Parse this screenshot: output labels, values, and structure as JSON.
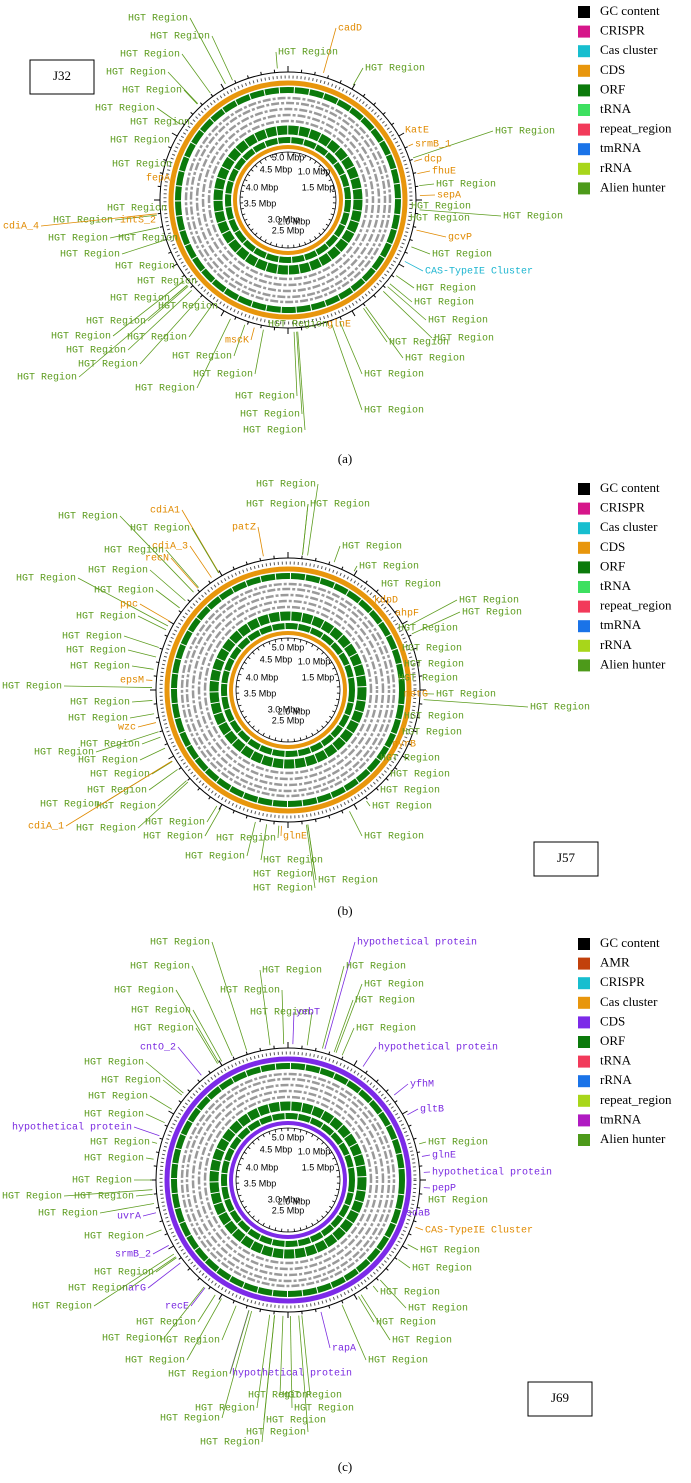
{
  "panels": [
    {
      "caption": "(a)",
      "sample": "J32",
      "legend": [
        {
          "label": "GC content",
          "color": "#000000"
        },
        {
          "label": "CRISPR",
          "color": "#d6168a"
        },
        {
          "label": "Cas cluster",
          "color": "#17becf"
        },
        {
          "label": "CDS",
          "color": "#e8960c"
        },
        {
          "label": "ORF",
          "color": "#0b7a0b"
        },
        {
          "label": "tRNA",
          "color": "#3de060"
        },
        {
          "label": "repeat_region",
          "color": "#f23a5a"
        },
        {
          "label": "tmRNA",
          "color": "#1a73e8"
        },
        {
          "label": "rRNA",
          "color": "#a8d61a"
        },
        {
          "label": "Alien hunter",
          "color": "#4d9a1a"
        }
      ],
      "scale_labels": [
        "5.0 Mbp",
        "4.5 Mbp",
        "1.0 Mbp",
        "4.0 Mbp",
        "1.5 Mbp",
        "3.5 Mbp",
        "3.0 Mbp",
        "2.0 Mbp",
        "2.5 Mbp"
      ],
      "annotations": [
        "HGT Region",
        "HGT Region",
        "HGT Region",
        "HGT Region",
        "HGT Region",
        "HGT Region",
        "HGT Region",
        "HGT Region",
        "HGT Region",
        "fepA",
        "HGT Region",
        "HGT Region",
        "intS_2",
        "cdiA_4",
        "HGT Region",
        "HGT Region",
        "HGT Region",
        "HGT Region",
        "HGT Region",
        "HGT Region",
        "HGT Region",
        "HGT Region",
        "HGT Region",
        "HGT Region",
        "HGT Region",
        "HGT Region",
        "HGT Region",
        "HGT Region",
        "HGT Region",
        "mscK",
        "HGT Region",
        "HGT Region",
        "HGT Region",
        "HGT Region",
        "HGT Region",
        "glnE",
        "HGT Region",
        "HGT Region",
        "HGT Region",
        "HGT Region",
        "HGT Region",
        "HGT Region",
        "HGT Region",
        "HGT Region",
        "CAS-TypeIE Cluster",
        "HGT Region",
        "gcvP",
        "HGT Region",
        "HGT Region",
        "HGT Region",
        "sepA",
        "HGT Region",
        "fhuE",
        "dcp",
        "HGT Region",
        "srmB_1",
        "KatE",
        "HGT Region",
        "cadD",
        "HGT Region"
      ]
    },
    {
      "caption": "(b)",
      "sample": "J57",
      "legend": [
        {
          "label": "GC content",
          "color": "#000000"
        },
        {
          "label": "CRISPR",
          "color": "#d6168a"
        },
        {
          "label": "Cas cluster",
          "color": "#17becf"
        },
        {
          "label": "CDS",
          "color": "#e8960c"
        },
        {
          "label": "ORF",
          "color": "#0b7a0b"
        },
        {
          "label": "tRNA",
          "color": "#3de060"
        },
        {
          "label": "repeat_region",
          "color": "#f23a5a"
        },
        {
          "label": "tmRNA",
          "color": "#1a73e8"
        },
        {
          "label": "rRNA",
          "color": "#a8d61a"
        },
        {
          "label": "Alien hunter",
          "color": "#4d9a1a"
        }
      ],
      "scale_labels": [
        "5.0 Mbp",
        "4.5 Mbp",
        "1.0 Mbp",
        "4.0 Mbp",
        "1.5 Mbp",
        "3.5 Mbp",
        "3.0 Mbp",
        "2.0 Mbp",
        "2.5 Mbp"
      ],
      "annotations": [
        "HGT Region",
        "cdiA1",
        "HGT Region",
        "HGT Region",
        "HGT Region",
        "patZ",
        "HGT Region",
        "cdiA_3",
        "HGT Region",
        "HGT Region",
        "recN",
        "HGT Region",
        "HGT Region",
        "HGT Region",
        "ppc",
        "HGT Region",
        "HGT Region",
        "HGT Region",
        "kdpD",
        "HGT Region",
        "HGT Region",
        "ahpF",
        "HGT Region",
        "HGT Region",
        "HGT Region",
        "HGT Region",
        "HGT Region",
        "HGT Region",
        "epsM",
        "HGT Region",
        "HGT Region",
        "wzc",
        "HGT Region",
        "HGT Region",
        "HGT Region",
        "HGT Region",
        "HGT Region",
        "HGT Region",
        "HGT Region",
        "cdiA_1",
        "HGT Region",
        "HGT Region",
        "HGT Region",
        "HGT Region",
        "HGT Region",
        "glnE",
        "HGT Region",
        "HGT Region",
        "HGT Region",
        "HGT Region",
        "HGT Region",
        "HGT Region",
        "HGT Region",
        "HGT Region",
        "HGT Region",
        "gyrB",
        "HGT Region",
        "HGT Region",
        "HGT Region",
        "metG",
        "HGT Region",
        "HGT Region",
        "HGT Region"
      ]
    },
    {
      "caption": "(c)",
      "sample": "J69",
      "legend": [
        {
          "label": "GC content",
          "color": "#000000"
        },
        {
          "label": "AMR",
          "color": "#c2410c"
        },
        {
          "label": "CRISPR",
          "color": "#17becf"
        },
        {
          "label": "Cas cluster",
          "color": "#e8960c"
        },
        {
          "label": "CDS",
          "color": "#7c2ae8"
        },
        {
          "label": "ORF",
          "color": "#0b7a0b"
        },
        {
          "label": "tRNA",
          "color": "#f23a5a"
        },
        {
          "label": "rRNA",
          "color": "#1a73e8"
        },
        {
          "label": "repeat_region",
          "color": "#a8d61a"
        },
        {
          "label": "tmRNA",
          "color": "#b01ac2"
        },
        {
          "label": "Alien hunter",
          "color": "#4d9a1a"
        }
      ],
      "scale_labels": [
        "5.0 Mbp",
        "4.5 Mbp",
        "1.0 Mbp",
        "4.0 Mbp",
        "1.5 Mbp",
        "3.5 Mbp",
        "3.0 Mbp",
        "2.0 Mbp",
        "2.5 Mbp"
      ],
      "annotations": [
        "HGT Region",
        "hypothetical protein",
        "HGT Region",
        "HGT Region",
        "HGT Region",
        "HGT Region",
        "HGT Region",
        "HGT Region",
        "HGT Region",
        "HGT Region",
        "HGT Region",
        "yebT",
        "HGT Region",
        "HGT Region",
        "cntO_2",
        "hypothetical protein",
        "HGT Region",
        "HGT Region",
        "yfhM",
        "HGT Region",
        "gltB",
        "HGT Region",
        "hypothetical protein",
        "HGT Region",
        "HGT Region",
        "glnE",
        "HGT Region",
        "hypothetical protein",
        "HGT Region",
        "pepP",
        "HGT Region",
        "HGT Region",
        "HGT Region",
        "uvrA",
        "HGT Region",
        "sdaB",
        "CAS-TypeIE Cluster",
        "HGT Region",
        "HGT Region",
        "srmB_2",
        "HGT Region",
        "HGT Region",
        "narG",
        "HGT Region",
        "HGT Region",
        "recE",
        "HGT Region",
        "HGT Region",
        "HGT Region",
        "HGT Region",
        "HGT Region",
        "HGT Region",
        "HGT Region",
        "rapA",
        "HGT Region",
        "HGT Region",
        "hypothetical protein",
        "HGT Region",
        "HGT Region",
        "HGT Region",
        "HGT Region",
        "HGT Region",
        "HGT Region",
        "HGT Region",
        "HGT Region",
        "HGT Region"
      ]
    }
  ]
}
